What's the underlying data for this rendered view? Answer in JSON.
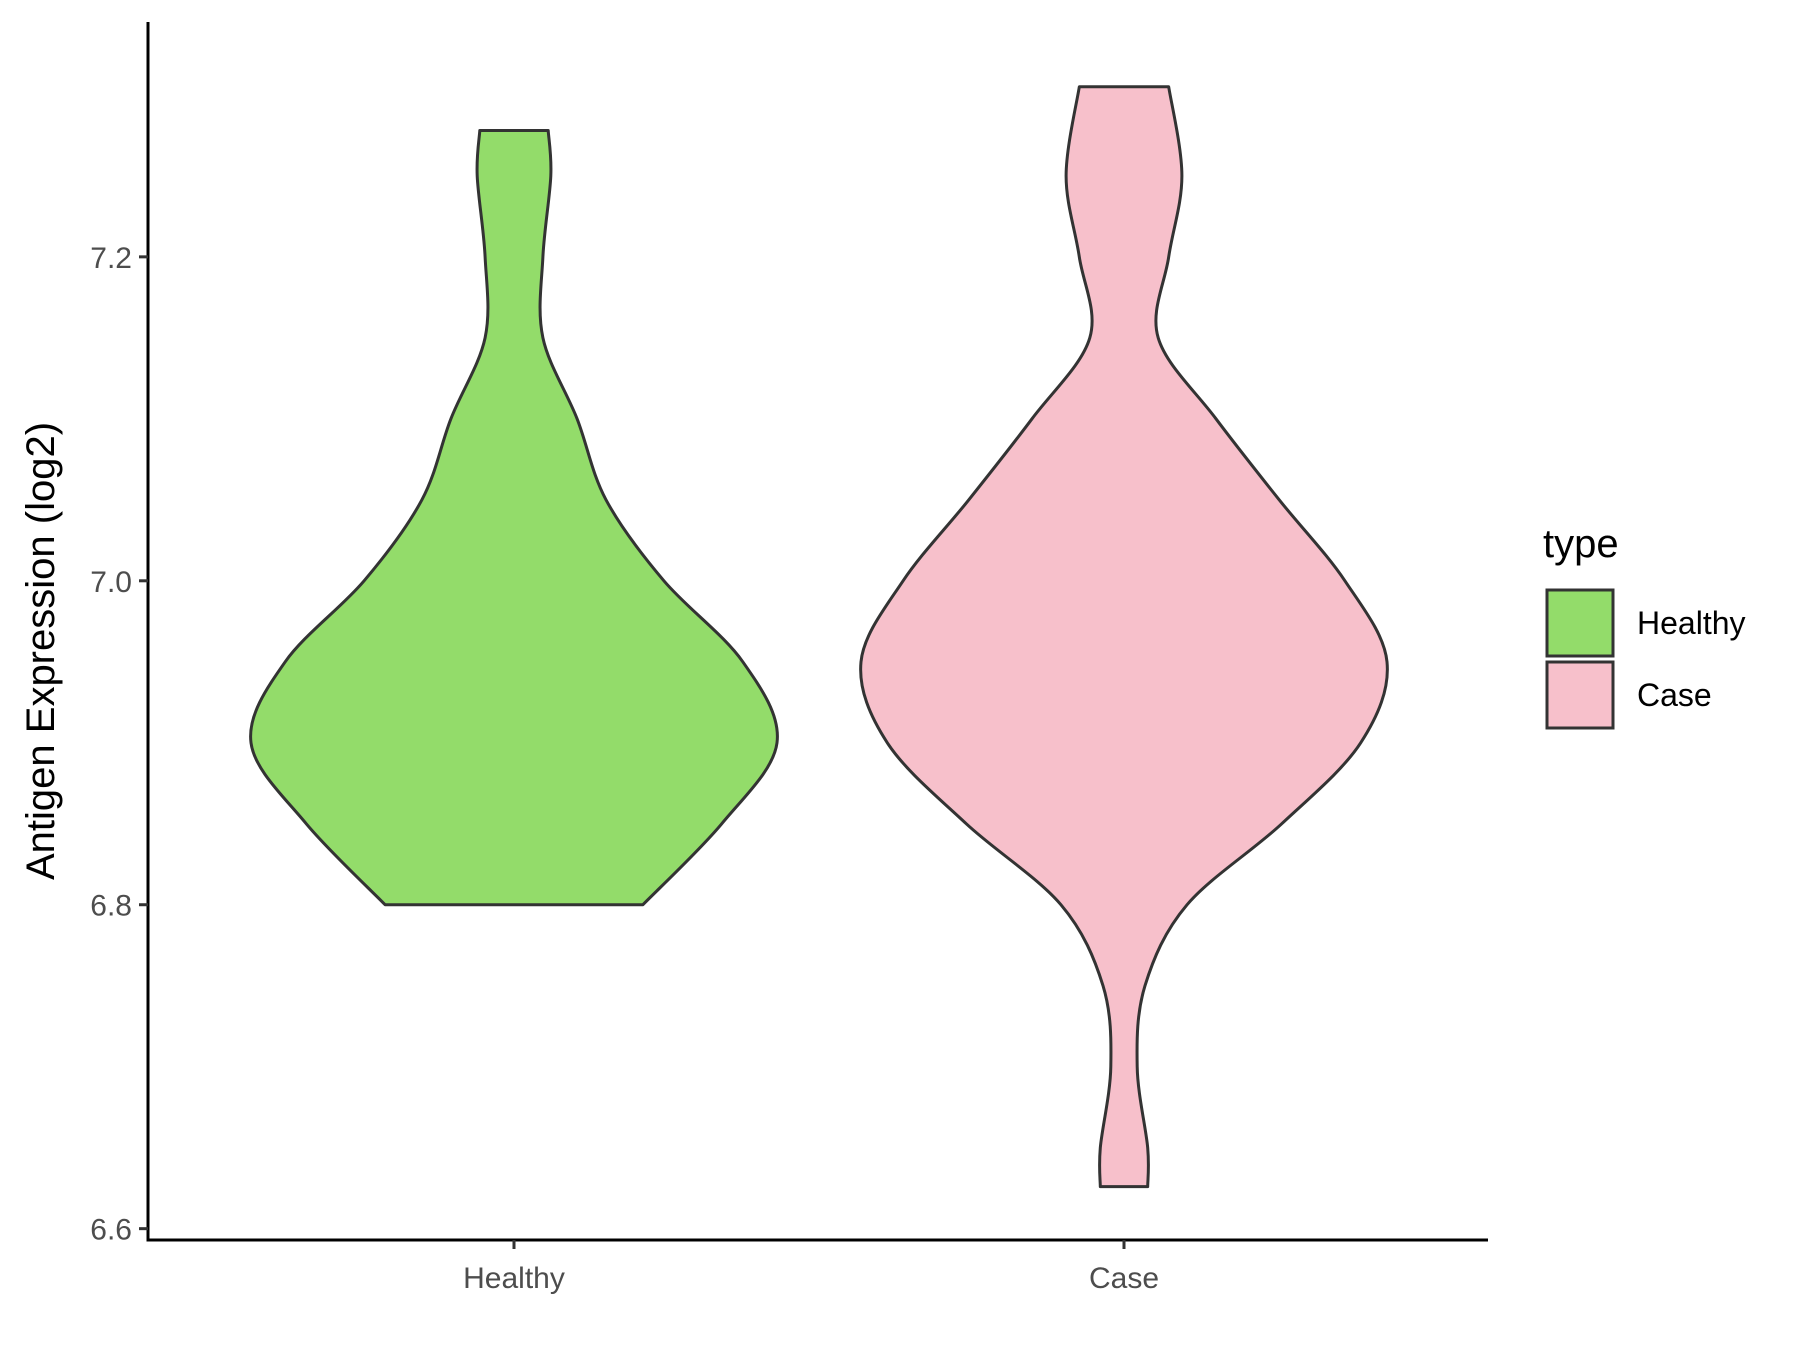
{
  "chart_data": {
    "type": "violin",
    "xlabel": "",
    "ylabel": "Antigen Expression (log2)",
    "ylim": [
      6.593,
      7.345
    ],
    "yticks": [
      6.6,
      6.8,
      7.0,
      7.2
    ],
    "ytick_labels": [
      "6.6",
      "6.8",
      "7.0",
      "7.2"
    ],
    "categories": [
      "Healthy",
      "Case"
    ],
    "legend": {
      "title": "type",
      "position": "right",
      "entries": [
        {
          "label": "Healthy",
          "color": "#93DC6A"
        },
        {
          "label": "Case",
          "color": "#F7C0CB"
        }
      ]
    },
    "grid": false,
    "outline_color": "#333333",
    "series": [
      {
        "name": "Healthy",
        "color": "#93DC6A",
        "y_min": 6.8,
        "y_max": 7.278,
        "density_profile": [
          [
            6.8,
            0.49
          ],
          [
            6.85,
            0.79
          ],
          [
            6.9,
            1.0
          ],
          [
            6.95,
            0.87
          ],
          [
            7.0,
            0.57
          ],
          [
            7.05,
            0.35
          ],
          [
            7.1,
            0.24
          ],
          [
            7.15,
            0.11
          ],
          [
            7.2,
            0.11
          ],
          [
            7.25,
            0.14
          ],
          [
            7.278,
            0.13
          ]
        ]
      },
      {
        "name": "Case",
        "color": "#F7C0CB",
        "y_min": 6.626,
        "y_max": 7.305,
        "density_profile": [
          [
            6.626,
            0.09
          ],
          [
            6.65,
            0.09
          ],
          [
            6.7,
            0.05
          ],
          [
            6.75,
            0.08
          ],
          [
            6.8,
            0.24
          ],
          [
            6.85,
            0.6
          ],
          [
            6.9,
            0.9
          ],
          [
            6.95,
            1.0
          ],
          [
            7.0,
            0.84
          ],
          [
            7.05,
            0.59
          ],
          [
            7.1,
            0.35
          ],
          [
            7.15,
            0.13
          ],
          [
            7.2,
            0.17
          ],
          [
            7.25,
            0.22
          ],
          [
            7.305,
            0.17
          ]
        ]
      }
    ]
  }
}
